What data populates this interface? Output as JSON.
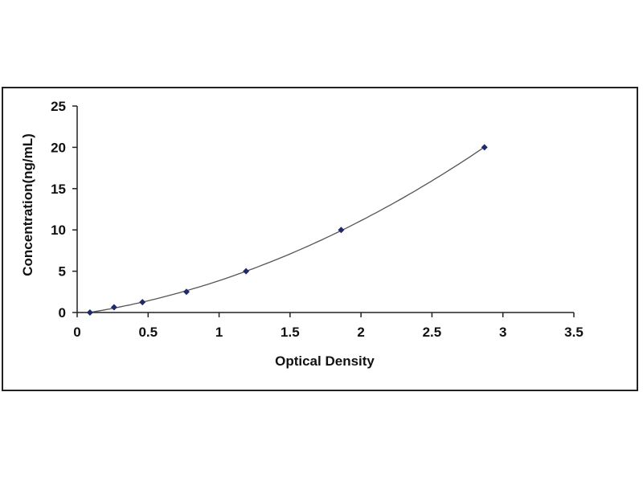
{
  "chart_data": {
    "type": "scatter",
    "title": "",
    "xlabel": "Optical Density",
    "ylabel": "Concentration(ng/mL)",
    "xlim": [
      0,
      3.5
    ],
    "ylim": [
      0,
      25
    ],
    "x_ticks": [
      "0",
      "0.5",
      "1",
      "1.5",
      "2",
      "2.5",
      "3",
      "3.5"
    ],
    "y_ticks": [
      "0",
      "5",
      "10",
      "15",
      "20",
      "25"
    ],
    "grid": false,
    "legend": "none",
    "series": [
      {
        "points": [
          {
            "x": 0.09,
            "y": 0
          },
          {
            "x": 0.26,
            "y": 0.63
          },
          {
            "x": 0.46,
            "y": 1.25
          },
          {
            "x": 0.77,
            "y": 2.5
          },
          {
            "x": 1.19,
            "y": 5
          },
          {
            "x": 1.86,
            "y": 10
          },
          {
            "x": 2.87,
            "y": 20
          }
        ],
        "fit_curve": true,
        "color": "#1f2a6b"
      }
    ]
  }
}
